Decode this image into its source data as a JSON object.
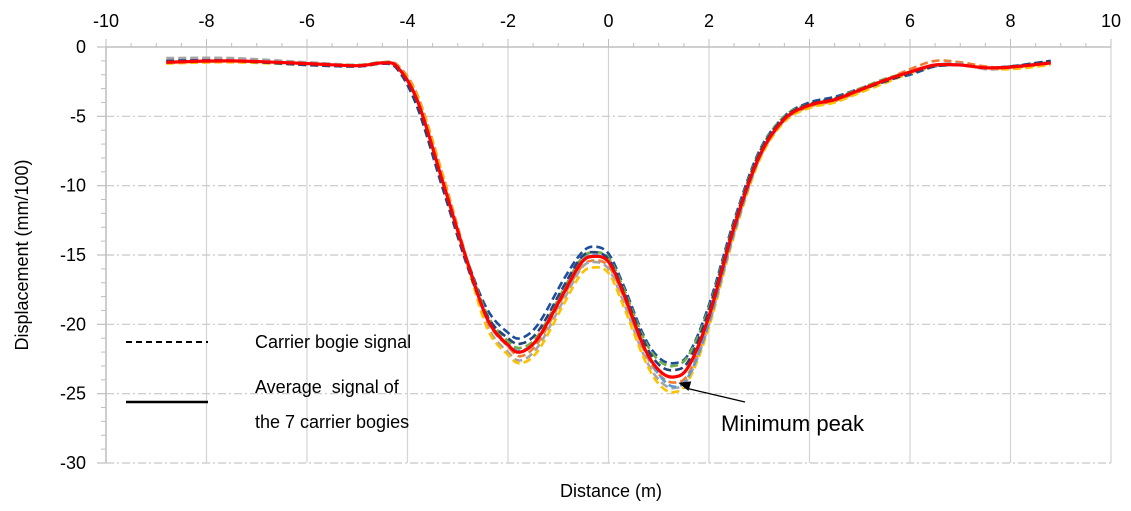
{
  "chart_data": {
    "type": "line",
    "title": "",
    "xlabel": "Distance (m)",
    "ylabel": "Displacement (mm/100)",
    "xlim": [
      -10,
      10
    ],
    "ylim": [
      -30,
      0
    ],
    "x_ticks": [
      "-10",
      "-8",
      "-6",
      "-4",
      "-2",
      "0",
      "2",
      "4",
      "6",
      "8",
      "10"
    ],
    "y_ticks": [
      "0",
      "-5",
      "-10",
      "-15",
      "-20",
      "-25",
      "-30"
    ],
    "grid": true,
    "x_axis_position": "top",
    "legend_position": "bottom-left",
    "legend": [
      {
        "label": "Carrier bogie signal",
        "style": "dashed"
      },
      {
        "label_lines": [
          "Average  signal of",
          "the 7 carrier bogies"
        ],
        "style": "solid"
      }
    ],
    "annotation": {
      "text": "Minimum peak",
      "x": 1.35,
      "y": -24.0
    },
    "series": [
      {
        "color": "#1F4E9C",
        "style": "dashed",
        "x": [
          -8.8,
          -7.5,
          -6,
          -5,
          -4.5,
          -4.2,
          -3.8,
          -3.3,
          -2.8,
          -2.4,
          -2,
          -1.75,
          -1.4,
          -0.9,
          -0.55,
          -0.3,
          0,
          0.3,
          0.7,
          1.0,
          1.3,
          1.6,
          2.0,
          2.5,
          3.0,
          3.5,
          4.0,
          4.5,
          5.0,
          5.5,
          6.0,
          6.5,
          7.0,
          7.5,
          8.0,
          8.8
        ],
        "y": [
          -1.0,
          -0.9,
          -1.2,
          -1.4,
          -1.2,
          -1.6,
          -4.2,
          -10.0,
          -15.5,
          -19.0,
          -20.6,
          -21.0,
          -20.0,
          -16.8,
          -14.9,
          -14.4,
          -14.9,
          -17.2,
          -20.8,
          -22.4,
          -22.8,
          -22.1,
          -18.6,
          -12.5,
          -7.5,
          -5.0,
          -4.0,
          -3.6,
          -3.0,
          -2.4,
          -2.0,
          -1.4,
          -1.3,
          -1.5,
          -1.4,
          -1.0
        ]
      },
      {
        "color": "#ED7D31",
        "style": "dashed",
        "x": [
          -8.8,
          -7.5,
          -6,
          -5,
          -4.5,
          -4.2,
          -3.8,
          -3.3,
          -2.8,
          -2.4,
          -2,
          -1.75,
          -1.4,
          -0.9,
          -0.55,
          -0.3,
          0,
          0.3,
          0.7,
          1.0,
          1.3,
          1.6,
          2.0,
          2.5,
          3.0,
          3.5,
          4.0,
          4.5,
          5.0,
          5.5,
          6.0,
          6.5,
          7.0,
          7.5,
          8.0,
          8.8
        ],
        "y": [
          -1.1,
          -1.0,
          -1.2,
          -1.3,
          -1.1,
          -1.3,
          -3.5,
          -9.2,
          -15.5,
          -19.8,
          -21.6,
          -22.3,
          -21.3,
          -18.0,
          -15.9,
          -15.4,
          -15.8,
          -18.0,
          -21.8,
          -23.6,
          -24.2,
          -23.5,
          -19.8,
          -13.2,
          -8.0,
          -5.3,
          -4.3,
          -3.9,
          -3.2,
          -2.4,
          -1.6,
          -1.0,
          -1.1,
          -1.4,
          -1.5,
          -1.2
        ]
      },
      {
        "color": "#A5A5A5",
        "style": "dashed",
        "x": [
          -8.8,
          -7.5,
          -6,
          -5,
          -4.5,
          -4.2,
          -3.8,
          -3.3,
          -2.8,
          -2.4,
          -2,
          -1.75,
          -1.4,
          -0.9,
          -0.55,
          -0.3,
          0,
          0.3,
          0.7,
          1.0,
          1.3,
          1.6,
          2.0,
          2.5,
          3.0,
          3.5,
          4.0,
          4.5,
          5.0,
          5.5,
          6.0,
          6.5,
          7.0,
          7.5,
          8.0,
          8.8
        ],
        "y": [
          -0.8,
          -0.8,
          -1.1,
          -1.3,
          -1.1,
          -1.4,
          -3.8,
          -9.5,
          -15.7,
          -20.2,
          -22.0,
          -22.6,
          -21.6,
          -18.3,
          -16.0,
          -15.5,
          -16.0,
          -18.4,
          -22.2,
          -24.0,
          -24.6,
          -23.8,
          -20.0,
          -13.4,
          -8.1,
          -5.3,
          -4.2,
          -3.8,
          -3.1,
          -2.4,
          -1.8,
          -1.3,
          -1.2,
          -1.6,
          -1.5,
          -1.1
        ]
      },
      {
        "color": "#FFC000",
        "style": "dashed",
        "x": [
          -8.8,
          -7.5,
          -6,
          -5,
          -4.5,
          -4.2,
          -3.8,
          -3.3,
          -2.8,
          -2.4,
          -2,
          -1.75,
          -1.4,
          -0.9,
          -0.55,
          -0.3,
          0,
          0.3,
          0.7,
          1.0,
          1.3,
          1.6,
          2.0,
          2.5,
          3.0,
          3.5,
          4.0,
          4.5,
          5.0,
          5.5,
          6.0,
          6.5,
          7.0,
          7.5,
          8.0,
          8.8
        ],
        "y": [
          -1.2,
          -1.1,
          -1.3,
          -1.4,
          -1.2,
          -1.4,
          -3.6,
          -9.3,
          -15.8,
          -20.4,
          -22.2,
          -22.8,
          -21.9,
          -18.6,
          -16.4,
          -15.9,
          -16.3,
          -18.7,
          -22.4,
          -24.3,
          -24.9,
          -24.0,
          -20.2,
          -13.6,
          -8.2,
          -5.4,
          -4.4,
          -4.0,
          -3.3,
          -2.6,
          -1.9,
          -1.4,
          -1.3,
          -1.5,
          -1.6,
          -1.3
        ]
      },
      {
        "color": "#5B9BD5",
        "style": "dashed",
        "x": [
          -8.8,
          -7.5,
          -6,
          -5,
          -4.5,
          -4.2,
          -3.8,
          -3.3,
          -2.8,
          -2.4,
          -2,
          -1.75,
          -1.4,
          -0.9,
          -0.55,
          -0.3,
          0,
          0.3,
          0.7,
          1.0,
          1.3,
          1.6,
          2.0,
          2.5,
          3.0,
          3.5,
          4.0,
          4.5,
          5.0,
          5.5,
          6.0,
          6.5,
          7.0,
          7.5,
          8.0,
          8.8
        ],
        "y": [
          -1.1,
          -1.0,
          -1.3,
          -1.4,
          -1.2,
          -1.5,
          -4.0,
          -9.8,
          -15.6,
          -19.6,
          -21.4,
          -21.9,
          -21.0,
          -17.7,
          -15.5,
          -15.0,
          -15.5,
          -17.8,
          -21.6,
          -23.6,
          -24.5,
          -23.7,
          -19.9,
          -13.4,
          -8.0,
          -5.2,
          -4.2,
          -3.8,
          -3.1,
          -2.4,
          -1.8,
          -1.4,
          -1.3,
          -1.5,
          -1.4,
          -1.1
        ]
      },
      {
        "color": "#70AD47",
        "style": "dashed",
        "x": [
          -8.8,
          -7.5,
          -6,
          -5,
          -4.5,
          -4.2,
          -3.8,
          -3.3,
          -2.8,
          -2.4,
          -2,
          -1.75,
          -1.4,
          -0.9,
          -0.55,
          -0.3,
          0,
          0.3,
          0.7,
          1.0,
          1.3,
          1.6,
          2.0,
          2.5,
          3.0,
          3.5,
          4.0,
          4.5,
          5.0,
          5.5,
          6.0,
          6.5,
          7.0,
          7.5,
          8.0,
          8.8
        ],
        "y": [
          -1.1,
          -1.0,
          -1.2,
          -1.3,
          -1.1,
          -1.4,
          -3.9,
          -9.7,
          -15.5,
          -19.4,
          -21.2,
          -21.7,
          -20.8,
          -17.5,
          -15.3,
          -14.8,
          -15.2,
          -17.4,
          -21.0,
          -22.6,
          -23.0,
          -22.2,
          -18.8,
          -12.7,
          -7.6,
          -5.0,
          -4.1,
          -3.7,
          -3.0,
          -2.3,
          -1.8,
          -1.3,
          -1.3,
          -1.5,
          -1.4,
          -1.1
        ]
      },
      {
        "color": "#264478",
        "style": "dashed",
        "x": [
          -8.8,
          -7.5,
          -6,
          -5,
          -4.5,
          -4.2,
          -3.8,
          -3.3,
          -2.8,
          -2.4,
          -2,
          -1.75,
          -1.4,
          -0.9,
          -0.55,
          -0.3,
          0,
          0.3,
          0.7,
          1.0,
          1.3,
          1.6,
          2.0,
          2.5,
          3.0,
          3.5,
          4.0,
          4.5,
          5.0,
          5.5,
          6.0,
          6.5,
          7.0,
          7.5,
          8.0,
          8.8
        ],
        "y": [
          -1.0,
          -1.0,
          -1.3,
          -1.4,
          -1.2,
          -1.6,
          -4.4,
          -10.2,
          -15.9,
          -19.5,
          -21.0,
          -21.4,
          -20.5,
          -17.3,
          -15.2,
          -14.8,
          -15.3,
          -17.6,
          -21.2,
          -22.9,
          -23.3,
          -22.6,
          -19.0,
          -12.8,
          -7.7,
          -5.1,
          -4.1,
          -3.7,
          -3.1,
          -2.5,
          -1.9,
          -1.4,
          -1.3,
          -1.5,
          -1.4,
          -1.0
        ]
      },
      {
        "color": "#FF0000",
        "style": "solid",
        "x": [
          -8.8,
          -7.5,
          -6,
          -5,
          -4.5,
          -4.2,
          -3.8,
          -3.3,
          -2.8,
          -2.4,
          -2,
          -1.75,
          -1.4,
          -0.9,
          -0.55,
          -0.3,
          0,
          0.3,
          0.7,
          1.0,
          1.3,
          1.6,
          2.0,
          2.5,
          3.0,
          3.5,
          4.0,
          4.5,
          5.0,
          5.5,
          6.0,
          6.5,
          7.0,
          7.5,
          8.0,
          8.8
        ],
        "y": [
          -1.1,
          -1.0,
          -1.2,
          -1.35,
          -1.15,
          -1.45,
          -3.9,
          -9.7,
          -15.6,
          -19.7,
          -21.5,
          -22.0,
          -21.0,
          -17.8,
          -15.6,
          -15.1,
          -15.5,
          -17.8,
          -21.6,
          -23.3,
          -23.8,
          -23.0,
          -19.4,
          -13.0,
          -7.9,
          -5.2,
          -4.2,
          -3.8,
          -3.1,
          -2.4,
          -1.8,
          -1.3,
          -1.3,
          -1.5,
          -1.45,
          -1.15
        ]
      }
    ]
  }
}
